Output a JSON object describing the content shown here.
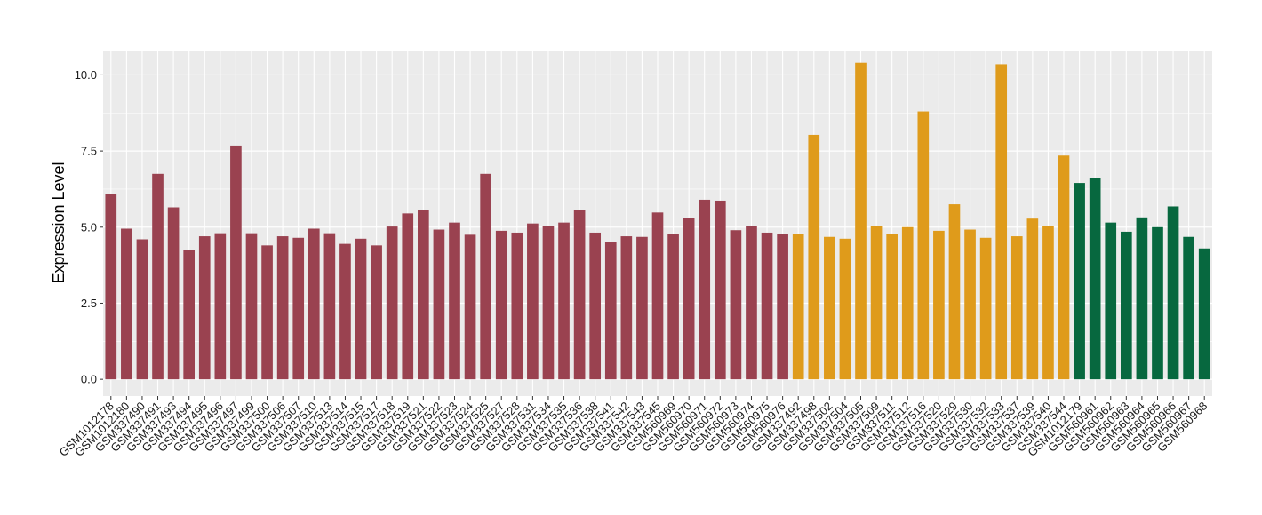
{
  "chart_data": {
    "type": "bar",
    "title": "",
    "xlabel": "",
    "ylabel": "Expression Level",
    "ylim": [
      0,
      10.8
    ],
    "yticks": [
      0,
      2.5,
      5,
      7.5,
      10
    ],
    "ytick_labels": [
      "0.0",
      "2.5",
      "5.0",
      "7.5",
      "10.0"
    ],
    "grid": true,
    "legend": "none",
    "colors": {
      "group1": "#9A4250",
      "group2": "#DF9B1B",
      "group3": "#07683F",
      "panel": "#EBEBEB",
      "grid": "#FFFFFF"
    },
    "categories": [
      "GSM1012178",
      "GSM1012180",
      "GSM337490",
      "GSM337491",
      "GSM337493",
      "GSM337494",
      "GSM337495",
      "GSM337496",
      "GSM337497",
      "GSM337499",
      "GSM337500",
      "GSM337506",
      "GSM337507",
      "GSM337510",
      "GSM337513",
      "GSM337514",
      "GSM337515",
      "GSM337517",
      "GSM337518",
      "GSM337519",
      "GSM337521",
      "GSM337522",
      "GSM337523",
      "GSM337524",
      "GSM337525",
      "GSM337527",
      "GSM337528",
      "GSM337531",
      "GSM337534",
      "GSM337535",
      "GSM337536",
      "GSM337538",
      "GSM337541",
      "GSM337542",
      "GSM337543",
      "GSM337545",
      "GSM560969",
      "GSM560970",
      "GSM560971",
      "GSM560972",
      "GSM560973",
      "GSM560974",
      "GSM560975",
      "GSM560976",
      "GSM337492",
      "GSM337498",
      "GSM337502",
      "GSM337504",
      "GSM337505",
      "GSM337509",
      "GSM337511",
      "GSM337512",
      "GSM337516",
      "GSM337520",
      "GSM337529",
      "GSM337530",
      "GSM337532",
      "GSM337533",
      "GSM337537",
      "GSM337539",
      "GSM337540",
      "GSM337544",
      "GSM1012179",
      "GSM560961",
      "GSM560962",
      "GSM560963",
      "GSM560964",
      "GSM560965",
      "GSM560966",
      "GSM560967",
      "GSM560968"
    ],
    "values": [
      6.1,
      4.95,
      4.6,
      6.75,
      5.65,
      4.25,
      4.7,
      4.8,
      7.68,
      4.8,
      4.4,
      4.7,
      4.65,
      4.95,
      4.8,
      4.45,
      4.62,
      4.4,
      5.02,
      5.45,
      5.57,
      4.92,
      5.15,
      4.75,
      6.75,
      4.88,
      4.82,
      5.12,
      5.03,
      5.15,
      5.57,
      4.82,
      4.52,
      4.7,
      4.68,
      5.48,
      4.78,
      5.3,
      5.9,
      5.87,
      4.9,
      5.03,
      4.82,
      4.78,
      4.78,
      8.03,
      4.68,
      4.62,
      10.4,
      5.03,
      4.78,
      5.0,
      8.8,
      4.88,
      5.75,
      4.92,
      4.65,
      10.35,
      4.7,
      5.28,
      5.03,
      7.35,
      6.45,
      6.6,
      5.15,
      4.85,
      5.32,
      5.0,
      5.68,
      4.68,
      4.3
    ],
    "groups": [
      1,
      1,
      1,
      1,
      1,
      1,
      1,
      1,
      1,
      1,
      1,
      1,
      1,
      1,
      1,
      1,
      1,
      1,
      1,
      1,
      1,
      1,
      1,
      1,
      1,
      1,
      1,
      1,
      1,
      1,
      1,
      1,
      1,
      1,
      1,
      1,
      1,
      1,
      1,
      1,
      1,
      1,
      1,
      1,
      2,
      2,
      2,
      2,
      2,
      2,
      2,
      2,
      2,
      2,
      2,
      2,
      2,
      2,
      2,
      2,
      2,
      2,
      3,
      3,
      3,
      3,
      3,
      3,
      3,
      3,
      3
    ]
  }
}
